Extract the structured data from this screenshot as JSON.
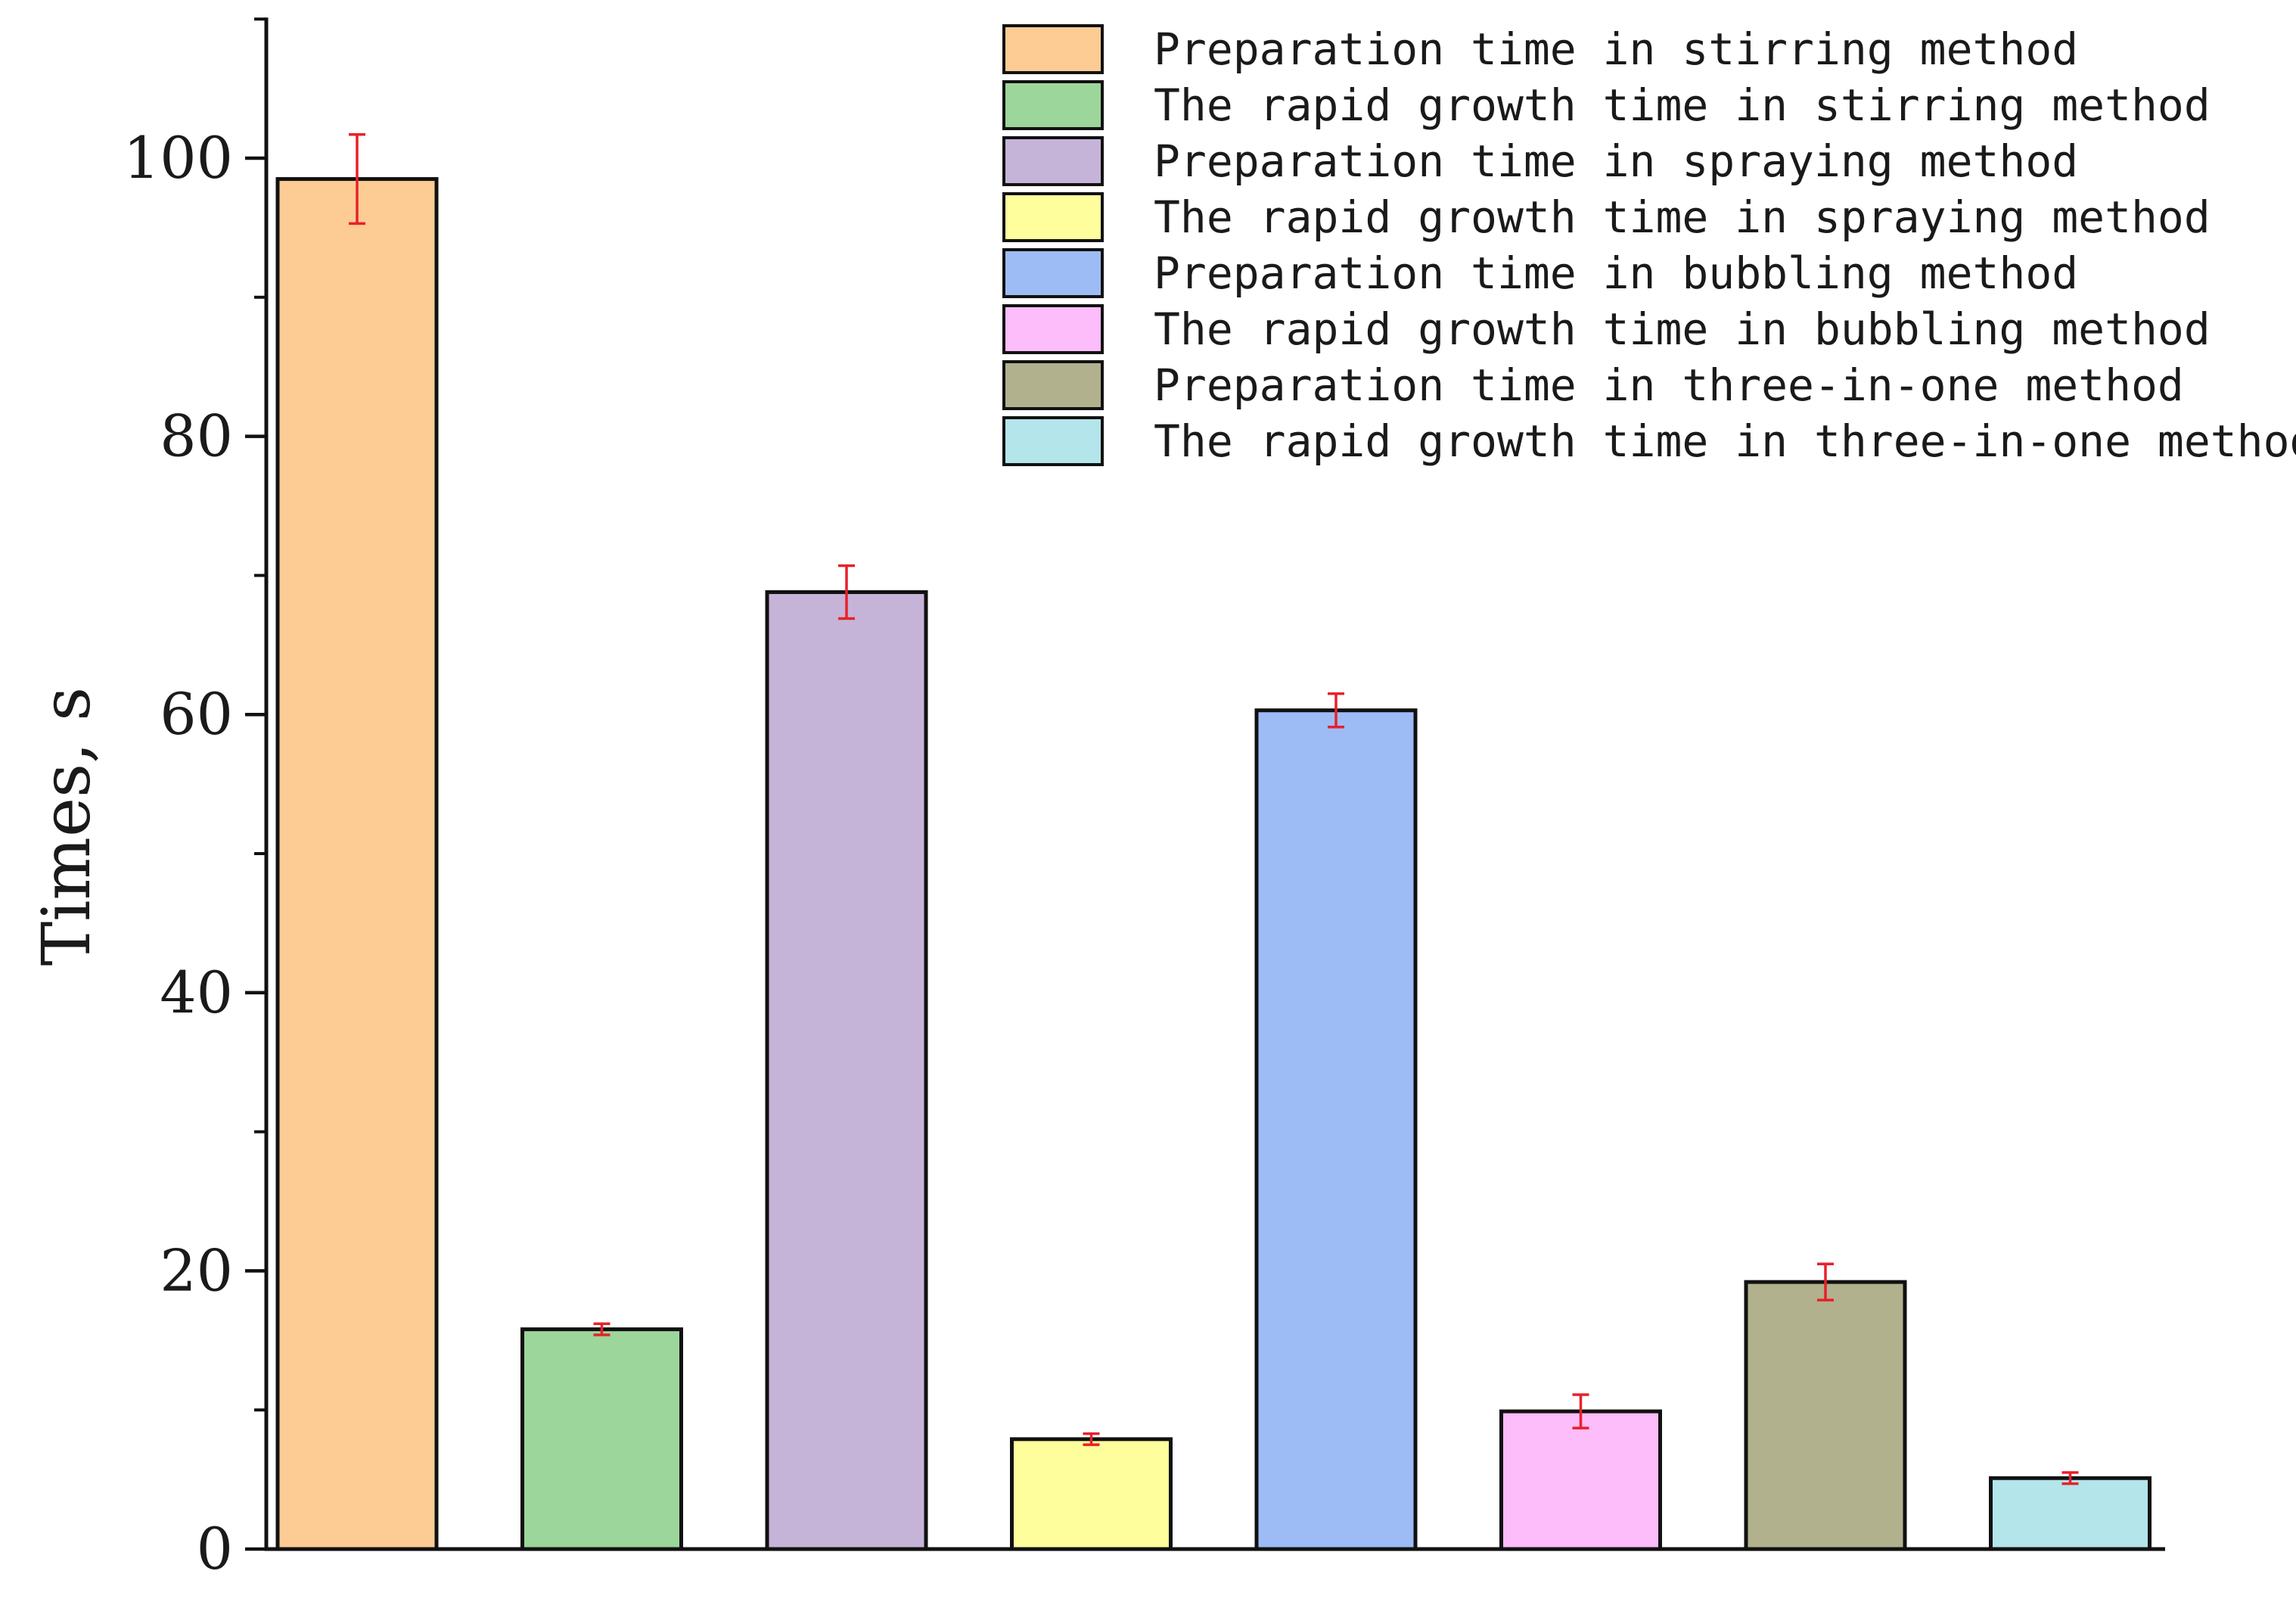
{
  "chart_data": {
    "type": "bar",
    "xlabel": "",
    "ylabel": "Times, s",
    "ylim": [
      0,
      110
    ],
    "yticks": [
      0,
      20,
      40,
      60,
      80,
      100
    ],
    "yticks_minor_step": 10,
    "grid": false,
    "legend_position": "top-right",
    "error_bar_color": "#e8202a",
    "series": [
      {
        "name": "Preparation time in stirring method",
        "value": 98.5,
        "error": 3.2,
        "color": "#fccc94"
      },
      {
        "name": "The rapid growth time in stirring method",
        "value": 15.8,
        "error": 0.4,
        "color": "#9cd69a"
      },
      {
        "name": "Preparation time in spraying method",
        "value": 68.8,
        "error": 1.9,
        "color": "#c5b4d8"
      },
      {
        "name": "The rapid growth time in spraying method",
        "value": 7.9,
        "error": 0.4,
        "color": "#fefe9d"
      },
      {
        "name": "Preparation time in bubbling method",
        "value": 60.3,
        "error": 1.2,
        "color": "#9dbcf6"
      },
      {
        "name": "The rapid growth time in bubbling method",
        "value": 9.9,
        "error": 1.2,
        "color": "#fdbcfa"
      },
      {
        "name": "Preparation time in three-in-one method",
        "value": 19.2,
        "error": 1.3,
        "color": "#b2b18e"
      },
      {
        "name": "The rapid growth time in three-in-one method",
        "value": 5.1,
        "error": 0.4,
        "color": "#b3e5ea"
      }
    ]
  }
}
